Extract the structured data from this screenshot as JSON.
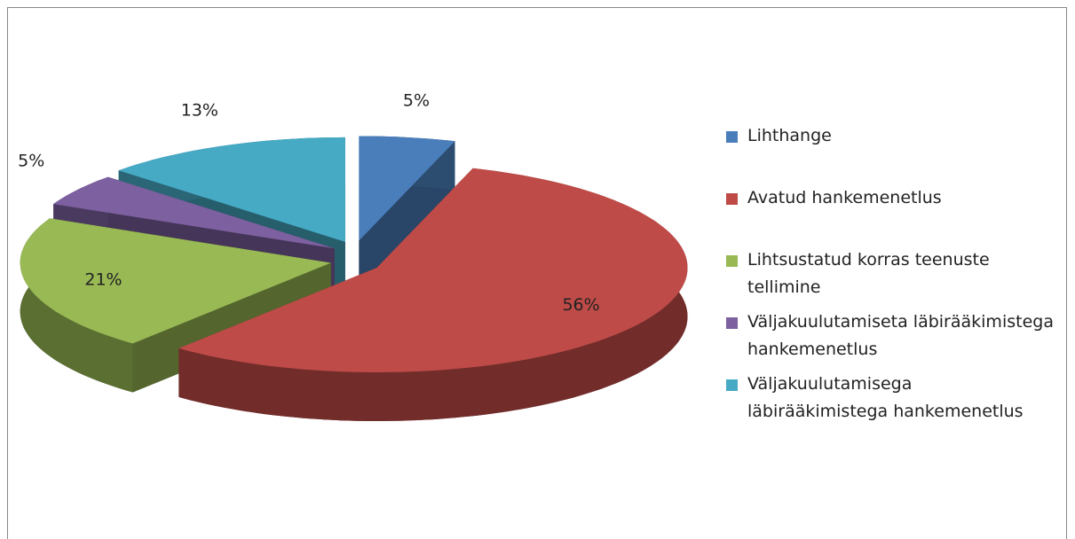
{
  "chart_data": {
    "type": "pie",
    "categories": [
      "Lihthange",
      "Avatud hankemenetlus",
      "Lihtsustatud korras teenuste tellimine",
      "Väljakuulutamiseta läbirääkimistega hankemenetlus",
      "Väljakuulutamisega läbirääkimistega hankemenetlus"
    ],
    "values": [
      5,
      56,
      21,
      5,
      13
    ],
    "value_labels": [
      "5%",
      "56%",
      "21%",
      "5%",
      "13%"
    ],
    "colors": [
      "#4a7ebb",
      "#be4b48",
      "#98b954",
      "#7d60a0",
      "#46aac5"
    ],
    "legend": "right"
  }
}
